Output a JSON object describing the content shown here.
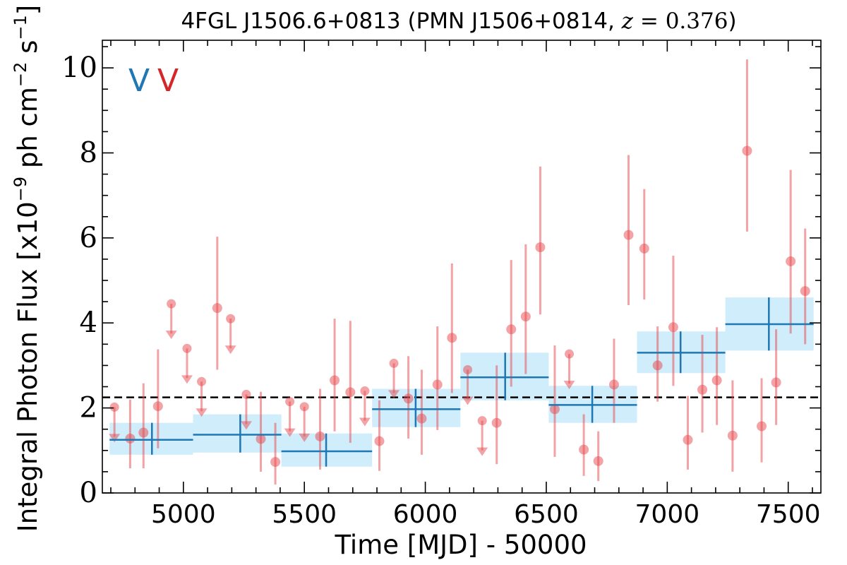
{
  "chart_data": {
    "type": "scatter",
    "title": {
      "prefix": "4FGL J1506.6+0813 (PMN J1506+0814, ",
      "var": "z",
      "eq": " = ",
      "num": "0.376",
      "suffix": ")"
    },
    "xlabel": "Time [MJD] - 50000",
    "ylabel": {
      "before": "Integral Photon Flux [x10",
      "exp1": "−9",
      "middle": " ph cm",
      "exp2": "−2",
      "middle2": " s",
      "exp3": "−1",
      "after": "]"
    },
    "xlim": [
      4665,
      7635
    ],
    "ylim": [
      0,
      10.65
    ],
    "xticks": [
      5000,
      5500,
      6000,
      6500,
      7000,
      7500
    ],
    "yticks": [
      0,
      2,
      4,
      6,
      8,
      10
    ],
    "grid": false,
    "corner_labels": [
      {
        "text": "V",
        "color": "#1f77b4"
      },
      {
        "text": "V",
        "color": "#d62728"
      }
    ],
    "colors": {
      "points": "#e8474b",
      "binned": "#1f77b4",
      "band": "#9fdcf8",
      "mean_line": "#000000"
    },
    "mean_flux": 2.25,
    "series": [
      {
        "kind": "detections",
        "points": [
          {
            "x": 4780,
            "y": 1.28,
            "lo": 0.58,
            "hi": 2.2
          },
          {
            "x": 4835,
            "y": 1.42,
            "lo": 0.58,
            "hi": 2.58
          },
          {
            "x": 4895,
            "y": 2.04,
            "lo": 1.05,
            "hi": 3.38
          },
          {
            "x": 5140,
            "y": 4.35,
            "lo": 2.9,
            "hi": 6.03
          },
          {
            "x": 5320,
            "y": 1.27,
            "lo": 0.5,
            "hi": 2.38
          },
          {
            "x": 5380,
            "y": 0.73,
            "lo": 0.2,
            "hi": 1.65
          },
          {
            "x": 5565,
            "y": 1.33,
            "lo": 0.55,
            "hi": 2.45
          },
          {
            "x": 5625,
            "y": 2.65,
            "lo": 1.45,
            "hi": 4.1
          },
          {
            "x": 5690,
            "y": 2.37,
            "lo": 1.18,
            "hi": 4.05
          },
          {
            "x": 5810,
            "y": 1.22,
            "lo": 0.52,
            "hi": 2.18
          },
          {
            "x": 5930,
            "y": 2.22,
            "lo": 1.28,
            "hi": 3.22
          },
          {
            "x": 5985,
            "y": 1.75,
            "lo": 0.9,
            "hi": 2.9
          },
          {
            "x": 6050,
            "y": 2.55,
            "lo": 1.48,
            "hi": 3.92
          },
          {
            "x": 6110,
            "y": 3.65,
            "lo": 2.35,
            "hi": 5.4
          },
          {
            "x": 6295,
            "y": 1.65,
            "lo": 0.68,
            "hi": 3.0
          },
          {
            "x": 6355,
            "y": 3.85,
            "lo": 2.5,
            "hi": 5.48
          },
          {
            "x": 6415,
            "y": 4.15,
            "lo": 2.8,
            "hi": 5.85
          },
          {
            "x": 6475,
            "y": 5.78,
            "lo": 4.2,
            "hi": 7.68
          },
          {
            "x": 6535,
            "y": 1.97,
            "lo": 0.85,
            "hi": 3.47
          },
          {
            "x": 6655,
            "y": 1.02,
            "lo": 0.4,
            "hi": 1.85
          },
          {
            "x": 6715,
            "y": 0.75,
            "lo": 0.28,
            "hi": 1.45
          },
          {
            "x": 6780,
            "y": 2.55,
            "lo": 1.65,
            "hi": 3.63
          },
          {
            "x": 6840,
            "y": 6.07,
            "lo": 4.42,
            "hi": 7.95
          },
          {
            "x": 6905,
            "y": 5.75,
            "lo": 4.55,
            "hi": 7.15
          },
          {
            "x": 6960,
            "y": 3.0,
            "lo": 2.15,
            "hi": 3.92
          },
          {
            "x": 7025,
            "y": 3.9,
            "lo": 2.52,
            "hi": 5.58
          },
          {
            "x": 7085,
            "y": 1.25,
            "lo": 0.55,
            "hi": 2.28
          },
          {
            "x": 7145,
            "y": 2.43,
            "lo": 1.42,
            "hi": 3.72
          },
          {
            "x": 7205,
            "y": 2.65,
            "lo": 1.6,
            "hi": 3.9
          },
          {
            "x": 7270,
            "y": 1.35,
            "lo": 0.5,
            "hi": 2.65
          },
          {
            "x": 7330,
            "y": 8.05,
            "lo": 6.15,
            "hi": 10.2
          },
          {
            "x": 7390,
            "y": 1.57,
            "lo": 0.72,
            "hi": 2.7
          },
          {
            "x": 7450,
            "y": 2.6,
            "lo": 1.6,
            "hi": 3.85
          },
          {
            "x": 7510,
            "y": 5.45,
            "lo": 3.75,
            "hi": 7.6
          },
          {
            "x": 7570,
            "y": 4.75,
            "lo": 3.5,
            "hi": 6.22
          }
        ]
      },
      {
        "kind": "upper_limits",
        "points": [
          {
            "x": 4715,
            "y": 2.02
          },
          {
            "x": 4950,
            "y": 4.45
          },
          {
            "x": 5015,
            "y": 3.4
          },
          {
            "x": 5075,
            "y": 2.62
          },
          {
            "x": 5195,
            "y": 4.1
          },
          {
            "x": 5260,
            "y": 2.32
          },
          {
            "x": 5440,
            "y": 2.15
          },
          {
            "x": 5500,
            "y": 2.03
          },
          {
            "x": 5750,
            "y": 2.4
          },
          {
            "x": 5870,
            "y": 3.05
          },
          {
            "x": 6175,
            "y": 2.9
          },
          {
            "x": 6235,
            "y": 1.7
          },
          {
            "x": 6595,
            "y": 3.27
          }
        ]
      },
      {
        "kind": "binned",
        "points": [
          {
            "x0": 4695,
            "x1": 5040,
            "xc": 4870,
            "y": 1.25,
            "lo": 0.9,
            "hi": 1.65
          },
          {
            "x0": 5040,
            "x1": 5405,
            "xc": 5235,
            "y": 1.37,
            "lo": 0.95,
            "hi": 1.85
          },
          {
            "x0": 5405,
            "x1": 5780,
            "xc": 5590,
            "y": 0.98,
            "lo": 0.62,
            "hi": 1.4
          },
          {
            "x0": 5780,
            "x1": 6145,
            "xc": 5960,
            "y": 1.97,
            "lo": 1.55,
            "hi": 2.45
          },
          {
            "x0": 6145,
            "x1": 6510,
            "xc": 6330,
            "y": 2.72,
            "lo": 2.18,
            "hi": 3.3
          },
          {
            "x0": 6510,
            "x1": 6875,
            "xc": 6690,
            "y": 2.07,
            "lo": 1.65,
            "hi": 2.52
          },
          {
            "x0": 6875,
            "x1": 7240,
            "xc": 7055,
            "y": 3.3,
            "lo": 2.82,
            "hi": 3.8
          },
          {
            "x0": 7240,
            "x1": 7605,
            "xc": 7420,
            "y": 3.97,
            "lo": 3.35,
            "hi": 4.6
          }
        ]
      }
    ]
  }
}
